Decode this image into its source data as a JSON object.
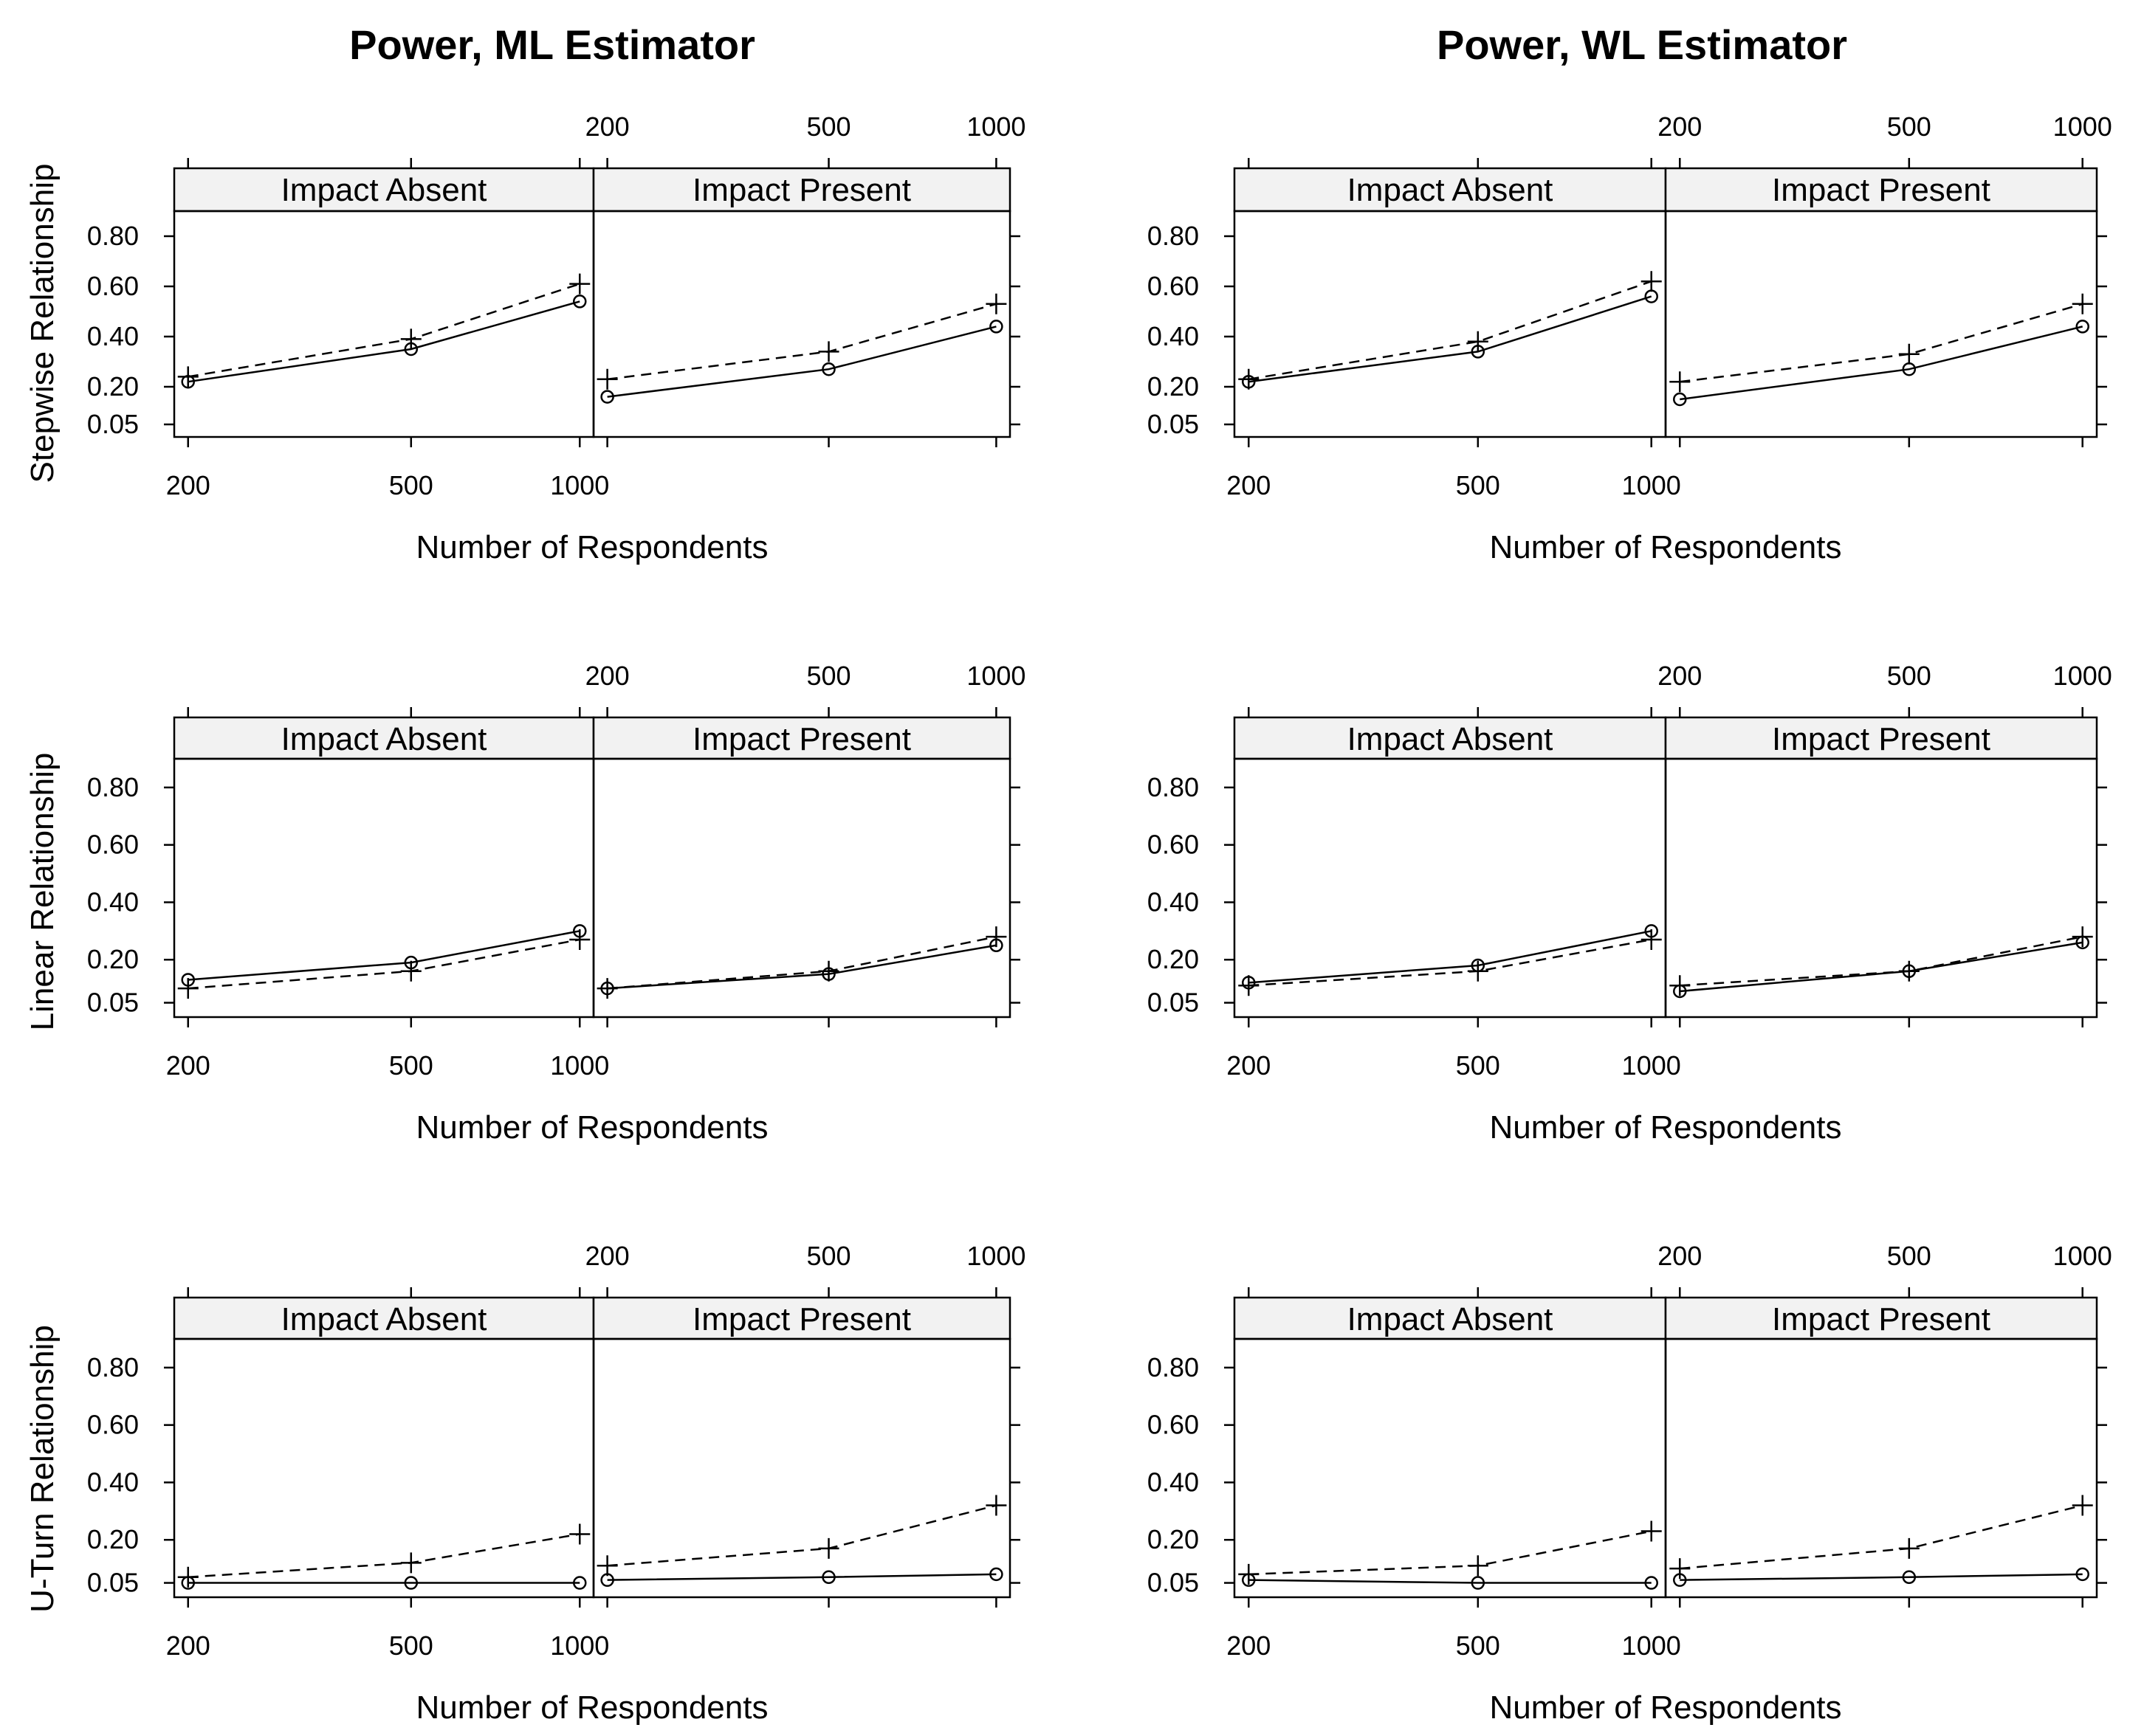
{
  "chart_data": {
    "type": "line",
    "layout": "trellis 3 rows x 2 estimator columns, each with two conditioned panels",
    "x": [
      200,
      500,
      1000
    ],
    "x_tick_labels": [
      "200",
      "500",
      "1000"
    ],
    "y_ticks": [
      0.05,
      0.2,
      0.4,
      0.6,
      0.8
    ],
    "y_tick_labels": [
      "0.05",
      "0.20",
      "0.40",
      "0.60",
      "0.80"
    ],
    "ylim": [
      0.0,
      0.9
    ],
    "xlabel": "Number of Respondents",
    "grid": false,
    "legend": "none",
    "series_styles": {
      "solid_circle": "solid line, circle markers",
      "dashed_plus": "dashed line, plus markers"
    },
    "columns": [
      {
        "title": "Power, ML Estimator"
      },
      {
        "title": "Power, WL Estimator"
      }
    ],
    "rows": [
      {
        "label": "Stepwise Relationship"
      },
      {
        "label": "Linear Relationship"
      },
      {
        "label": "U-Turn Relationship"
      }
    ],
    "panel_labels": [
      "Impact Absent",
      "Impact Present"
    ],
    "panels": [
      [
        [
          {
            "solid": [
              0.22,
              0.35,
              0.54
            ],
            "dashed": [
              0.24,
              0.39,
              0.61
            ]
          },
          {
            "solid": [
              0.16,
              0.27,
              0.44
            ],
            "dashed": [
              0.23,
              0.34,
              0.53
            ]
          }
        ],
        [
          {
            "solid": [
              0.22,
              0.34,
              0.56
            ],
            "dashed": [
              0.23,
              0.38,
              0.62
            ]
          },
          {
            "solid": [
              0.15,
              0.27,
              0.44
            ],
            "dashed": [
              0.22,
              0.33,
              0.53
            ]
          }
        ]
      ],
      [
        [
          {
            "solid": [
              0.13,
              0.19,
              0.3
            ],
            "dashed": [
              0.1,
              0.16,
              0.27
            ]
          },
          {
            "solid": [
              0.1,
              0.15,
              0.25
            ],
            "dashed": [
              0.1,
              0.16,
              0.28
            ]
          }
        ],
        [
          {
            "solid": [
              0.12,
              0.18,
              0.3
            ],
            "dashed": [
              0.11,
              0.16,
              0.27
            ]
          },
          {
            "solid": [
              0.09,
              0.16,
              0.26
            ],
            "dashed": [
              0.11,
              0.16,
              0.28
            ]
          }
        ]
      ],
      [
        [
          {
            "solid": [
              0.05,
              0.05,
              0.05
            ],
            "dashed": [
              0.07,
              0.12,
              0.22
            ]
          },
          {
            "solid": [
              0.06,
              0.07,
              0.08
            ],
            "dashed": [
              0.11,
              0.17,
              0.32
            ]
          }
        ],
        [
          {
            "solid": [
              0.06,
              0.05,
              0.05
            ],
            "dashed": [
              0.08,
              0.11,
              0.23
            ]
          },
          {
            "solid": [
              0.06,
              0.07,
              0.08
            ],
            "dashed": [
              0.1,
              0.17,
              0.32
            ]
          }
        ]
      ]
    ]
  }
}
